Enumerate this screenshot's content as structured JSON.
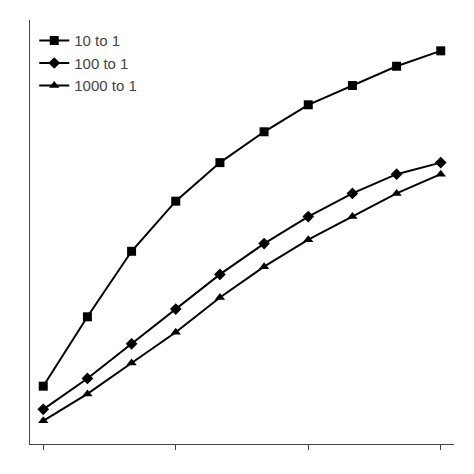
{
  "chart_data": {
    "type": "line",
    "x": [
      0,
      1,
      2,
      3,
      4,
      5,
      6,
      7,
      8,
      9
    ],
    "series": [
      {
        "name": "10 to 1",
        "color": "#000000",
        "marker": "square",
        "values": [
          0.1,
          0.28,
          0.45,
          0.58,
          0.68,
          0.76,
          0.83,
          0.88,
          0.93,
          0.97
        ]
      },
      {
        "name": "100 to 1",
        "color": "#000000",
        "marker": "diamond",
        "values": [
          0.04,
          0.12,
          0.21,
          0.3,
          0.39,
          0.47,
          0.54,
          0.6,
          0.65,
          0.68
        ]
      },
      {
        "name": "1000 to 1",
        "color": "#000000",
        "marker": "triangle",
        "values": [
          0.01,
          0.08,
          0.16,
          0.24,
          0.33,
          0.41,
          0.48,
          0.54,
          0.6,
          0.65
        ]
      }
    ],
    "xlim": [
      -0.3,
      9.3
    ],
    "ylim": [
      -0.05,
      1.05
    ],
    "xticks": [
      0,
      3,
      6,
      9
    ],
    "yticks": [],
    "tick_labels": false,
    "grid": false,
    "legend": "upper left"
  }
}
